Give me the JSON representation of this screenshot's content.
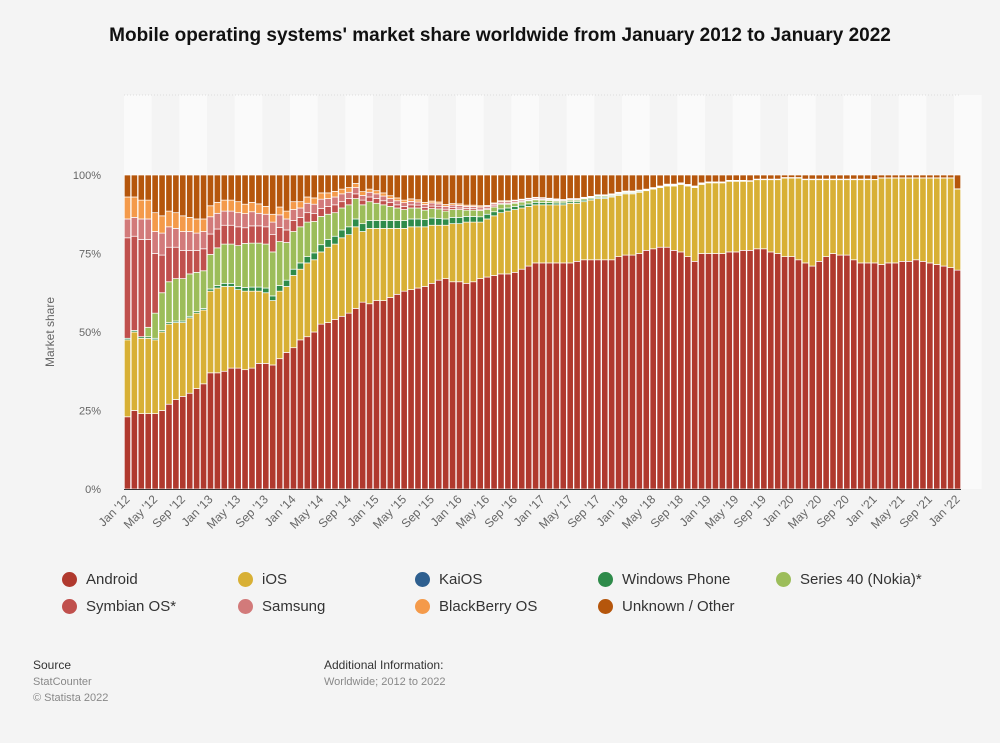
{
  "chart_data": {
    "type": "bar",
    "stacked": true,
    "title": "Mobile operating systems' market share worldwide from January 2012 to January 2022",
    "xlabel": "",
    "ylabel": "Market share",
    "ylim": [
      0,
      100
    ],
    "yticks": [
      "0%",
      "25%",
      "50%",
      "75%",
      "100%"
    ],
    "x_start": "2012-01",
    "x_end": "2022-01",
    "xtick_labels": [
      "Jan '12",
      "May '12",
      "Sep '12",
      "Jan '13",
      "May '13",
      "Sep '13",
      "Jan '14",
      "May '14",
      "Sep '14",
      "Jan '15",
      "May '15",
      "Sep '15",
      "Jan '16",
      "May '16",
      "Sep '16",
      "Jan '17",
      "May '17",
      "Sep '17",
      "Jan '18",
      "May '18",
      "Sep '18",
      "Jan '19",
      "May '19",
      "Sep '19",
      "Jan '20",
      "May '20",
      "Sep '20",
      "Jan '21",
      "May '21",
      "Sep '21",
      "Jan '22"
    ],
    "legend_position": "bottom",
    "series": [
      {
        "name": "Android",
        "color": "#b0392e",
        "values": [
          23,
          25,
          24,
          24,
          24,
          25,
          27,
          28.5,
          29.5,
          30.5,
          32,
          33.5,
          37,
          37,
          37.5,
          38.5,
          38.5,
          38,
          38.5,
          40,
          40,
          39.5,
          41.5,
          43.5,
          45,
          47.5,
          48.5,
          50,
          52.5,
          53,
          54,
          55,
          56,
          57.5,
          59.5,
          59,
          60,
          60,
          61,
          62,
          63,
          63.5,
          64,
          64.5,
          65.5,
          66.5,
          67,
          66,
          66,
          65.5,
          66,
          67,
          67.5,
          68,
          68.5,
          68.5,
          69,
          70,
          71,
          72,
          72,
          72,
          72,
          72,
          72,
          72.5,
          73,
          73,
          73,
          73,
          73,
          74,
          74.5,
          74.5,
          75,
          76,
          76.5,
          77,
          77,
          76,
          75.5,
          74,
          72.5,
          75,
          75,
          75,
          75,
          75.5,
          75.5,
          76,
          76,
          76.5,
          76.5,
          75.5,
          75,
          74,
          74,
          73,
          72,
          71,
          72.5,
          74,
          75,
          74.5,
          74.5,
          73,
          72,
          72,
          72,
          71.5,
          72,
          72,
          72.5,
          72.5,
          73,
          72.5,
          72,
          71.5,
          71,
          70.5,
          69.7
        ]
      },
      {
        "name": "iOS",
        "color": "#d8b035",
        "values": [
          24.5,
          25,
          24,
          24,
          23.5,
          25,
          25.5,
          24.5,
          23.5,
          24,
          24,
          23.5,
          26,
          27,
          27,
          26,
          25,
          25,
          24.5,
          23,
          22.5,
          20.5,
          21.5,
          21,
          23,
          22.5,
          23.5,
          23,
          23,
          24,
          24,
          25,
          25,
          26,
          22.5,
          24,
          23,
          23,
          22,
          21,
          20,
          20,
          19.5,
          19,
          18.5,
          17.5,
          17,
          18.5,
          18.5,
          19.5,
          19,
          18,
          18.5,
          19,
          19.5,
          20,
          20,
          19.5,
          19,
          18.5,
          18.5,
          18.5,
          18.5,
          18.5,
          19,
          18.5,
          18.5,
          19,
          19.5,
          19.5,
          20,
          19.5,
          19.5,
          19.5,
          19.5,
          19,
          19,
          19,
          19.5,
          20.5,
          21.5,
          22.5,
          23.5,
          22,
          22.5,
          22.5,
          22.5,
          22.5,
          22.5,
          22,
          22,
          22,
          22,
          23,
          23.5,
          25,
          25,
          26,
          26.5,
          27.5,
          26,
          24.5,
          23.5,
          24,
          24,
          25.5,
          26.5,
          26.5,
          26.5,
          27.5,
          27,
          27,
          26.5,
          26.5,
          26,
          26.5,
          27,
          27.5,
          28,
          28.5,
          25.8
        ]
      },
      {
        "name": "KaiOS",
        "color": "#2e5f8f",
        "values": [
          0,
          0,
          0,
          0,
          0,
          0,
          0,
          0,
          0,
          0,
          0,
          0,
          0,
          0,
          0,
          0,
          0,
          0,
          0,
          0,
          0,
          0,
          0,
          0,
          0,
          0,
          0,
          0,
          0,
          0,
          0,
          0,
          0,
          0,
          0,
          0,
          0,
          0,
          0,
          0,
          0,
          0,
          0,
          0,
          0,
          0,
          0,
          0,
          0,
          0,
          0,
          0,
          0,
          0,
          0,
          0,
          0,
          0,
          0,
          0,
          0,
          0,
          0,
          0,
          0,
          0,
          0,
          0,
          0,
          0,
          0,
          0,
          0,
          0,
          0,
          0,
          0,
          0,
          0.1,
          0.1,
          0.1,
          0.1,
          0.1,
          0.1,
          0.2,
          0.2,
          0.2,
          0.2,
          0.2,
          0.2,
          0.2,
          0.2,
          0.2,
          0.2,
          0.2,
          0.2,
          0.2,
          0.2,
          0.2,
          0.2,
          0.2,
          0.2,
          0.2,
          0.2,
          0.2,
          0.2,
          0.2,
          0.2,
          0.1,
          0.1,
          0.1,
          0.1,
          0.1,
          0.1,
          0.1,
          0.1,
          0.1,
          0.1,
          0.1,
          0.1,
          0.1
        ]
      },
      {
        "name": "Windows Phone",
        "color": "#2e8b4a",
        "values": [
          0.5,
          0.5,
          0.5,
          0.5,
          0.5,
          0.5,
          0.5,
          0.5,
          0.5,
          0.5,
          0.5,
          0.5,
          0.7,
          0.8,
          1,
          1,
          1,
          1.2,
          1.3,
          1.3,
          1.5,
          1.5,
          1.8,
          2,
          2,
          2,
          2,
          2.2,
          2.3,
          2.5,
          2.5,
          2.5,
          2.5,
          2.5,
          2.5,
          2.5,
          2.5,
          2.5,
          2.5,
          2.5,
          2.5,
          2.5,
          2.5,
          2.3,
          2.3,
          2.2,
          2,
          2,
          2,
          1.8,
          1.8,
          1.7,
          1.5,
          1.3,
          1.2,
          1,
          1,
          0.9,
          0.8,
          0.8,
          0.7,
          0.7,
          0.6,
          0.6,
          0.5,
          0.5,
          0.5,
          0.4,
          0.4,
          0.4,
          0.3,
          0.3,
          0.3,
          0.3,
          0.3,
          0.2,
          0.2,
          0.2,
          0.2,
          0.2,
          0.2,
          0.2,
          0.2,
          0.2,
          0.1,
          0.1,
          0.1,
          0.1,
          0.1,
          0.1,
          0,
          0,
          0,
          0,
          0,
          0,
          0,
          0,
          0,
          0,
          0,
          0,
          0,
          0,
          0,
          0,
          0,
          0,
          0,
          0,
          0,
          0,
          0,
          0,
          0,
          0,
          0,
          0,
          0,
          0,
          0
        ]
      },
      {
        "name": "Series 40 (Nokia)*",
        "color": "#9cbd5a",
        "values": [
          0,
          0,
          0,
          3,
          8,
          12,
          13,
          13.5,
          13.5,
          13.5,
          12.5,
          12,
          11,
          12,
          12.5,
          12.5,
          13,
          14,
          14,
          14,
          14,
          14,
          14,
          12,
          12,
          11.5,
          11,
          10,
          9,
          8,
          7.5,
          7,
          7,
          6.5,
          6,
          6,
          5.5,
          5,
          4.5,
          4,
          3.5,
          3.5,
          3.5,
          3,
          3,
          3,
          2.5,
          2.5,
          2.5,
          2,
          2,
          2,
          1.5,
          1.5,
          1.5,
          1.2,
          1,
          1,
          1,
          0.8,
          0.8,
          0.7,
          0.6,
          0.6,
          0.5,
          0.5,
          0.5,
          0.4,
          0.4,
          0.4,
          0.3,
          0.3,
          0.3,
          0.3,
          0.2,
          0.2,
          0.2,
          0.2,
          0.2,
          0.2,
          0.1,
          0.1,
          0.1,
          0.1,
          0,
          0,
          0,
          0,
          0,
          0,
          0,
          0,
          0,
          0,
          0,
          0,
          0,
          0,
          0,
          0,
          0,
          0,
          0,
          0,
          0,
          0,
          0,
          0,
          0,
          0,
          0,
          0,
          0,
          0,
          0,
          0,
          0,
          0,
          0,
          0,
          0
        ]
      },
      {
        "name": "Symbian OS*",
        "color": "#c0504d",
        "values": [
          32,
          30,
          31,
          28,
          19,
          12,
          11,
          10,
          9,
          7.5,
          7,
          7,
          6.5,
          6,
          6,
          6,
          6,
          5,
          5.5,
          5.5,
          5.5,
          5.5,
          4.5,
          4,
          3.5,
          3,
          3,
          2.5,
          2.5,
          2.5,
          2.5,
          2,
          2,
          1.5,
          1.5,
          1.5,
          1.5,
          1.3,
          1.2,
          1,
          1,
          1,
          0.9,
          0.8,
          0.8,
          0.7,
          0.6,
          0.6,
          0.5,
          0.5,
          0.5,
          0.4,
          0.4,
          0.4,
          0.3,
          0.3,
          0.3,
          0.3,
          0.2,
          0.2,
          0.2,
          0.2,
          0.2,
          0.1,
          0.1,
          0.1,
          0.1,
          0.1,
          0.1,
          0.1,
          0.1,
          0.1,
          0,
          0,
          0,
          0,
          0,
          0,
          0,
          0,
          0,
          0,
          0,
          0,
          0,
          0,
          0,
          0,
          0,
          0,
          0,
          0,
          0,
          0,
          0,
          0,
          0,
          0,
          0,
          0,
          0,
          0,
          0,
          0,
          0,
          0,
          0,
          0,
          0,
          0,
          0,
          0,
          0,
          0,
          0,
          0,
          0,
          0,
          0,
          0,
          0
        ]
      },
      {
        "name": "Samsung",
        "color": "#d27a7a",
        "values": [
          6,
          6,
          6.5,
          6.5,
          7,
          7,
          6.5,
          6,
          6,
          6,
          5.5,
          5.5,
          5.5,
          5,
          4.5,
          4.5,
          4.5,
          4.5,
          4.5,
          4,
          4,
          4,
          4,
          3.5,
          3.5,
          3,
          3,
          3,
          3,
          2.5,
          2.5,
          2.5,
          2,
          2,
          1.5,
          1.5,
          1.5,
          1.5,
          1.3,
          1.3,
          1.2,
          1.1,
          1,
          1,
          1,
          0.9,
          0.9,
          0.8,
          0.8,
          0.7,
          0.7,
          0.7,
          0.6,
          0.6,
          0.5,
          0.5,
          0.5,
          0.4,
          0.4,
          0.4,
          0.4,
          0.3,
          0.3,
          0.3,
          0.3,
          0.3,
          0.2,
          0.2,
          0.2,
          0.2,
          0.2,
          0.2,
          0.2,
          0.2,
          0.1,
          0.1,
          0.1,
          0.1,
          0.1,
          0.1,
          0.1,
          0.1,
          0.1,
          0.1,
          0,
          0,
          0,
          0,
          0,
          0,
          0,
          0,
          0,
          0,
          0,
          0,
          0,
          0,
          0,
          0,
          0,
          0,
          0,
          0,
          0,
          0,
          0,
          0,
          0,
          0,
          0,
          0,
          0,
          0,
          0,
          0,
          0,
          0,
          0,
          0,
          0
        ]
      },
      {
        "name": "BlackBerry OS",
        "color": "#f49a4a",
        "values": [
          7,
          6.5,
          6,
          6,
          6,
          5.5,
          5,
          5,
          5,
          4.5,
          4.5,
          4,
          3.5,
          3.5,
          3.5,
          3.5,
          3.5,
          3,
          3,
          3,
          2.5,
          2.5,
          2.5,
          2.5,
          2.5,
          2,
          2,
          2,
          2,
          1.8,
          1.8,
          1.5,
          1.5,
          1.3,
          1.2,
          1,
          1,
          1,
          0.9,
          0.9,
          0.8,
          0.8,
          0.7,
          0.7,
          0.6,
          0.6,
          0.6,
          0.5,
          0.5,
          0.4,
          0.4,
          0.4,
          0.3,
          0.3,
          0.3,
          0.3,
          0.2,
          0.2,
          0.2,
          0.2,
          0.2,
          0.2,
          0.2,
          0.1,
          0.1,
          0.1,
          0.1,
          0.1,
          0.1,
          0.1,
          0.1,
          0.1,
          0.1,
          0.1,
          0.1,
          0,
          0,
          0,
          0,
          0,
          0,
          0,
          0,
          0,
          0,
          0,
          0,
          0,
          0,
          0,
          0,
          0,
          0,
          0,
          0,
          0,
          0,
          0,
          0,
          0,
          0,
          0,
          0,
          0,
          0,
          0,
          0,
          0,
          0,
          0,
          0,
          0,
          0,
          0,
          0,
          0,
          0,
          0,
          0,
          0,
          0
        ]
      },
      {
        "name": "Unknown / Other",
        "color": "#b5560c",
        "values": "remainder"
      }
    ]
  },
  "legend": [
    {
      "label": "Android",
      "color": "#b0392e"
    },
    {
      "label": "iOS",
      "color": "#d8b035"
    },
    {
      "label": "KaiOS",
      "color": "#2e5f8f"
    },
    {
      "label": "Windows Phone",
      "color": "#2e8b4a"
    },
    {
      "label": "Series 40 (Nokia)*",
      "color": "#9cbd5a"
    },
    {
      "label": "Symbian OS*",
      "color": "#c0504d"
    },
    {
      "label": "Samsung",
      "color": "#d27a7a"
    },
    {
      "label": "BlackBerry OS",
      "color": "#f49a4a"
    },
    {
      "label": "Unknown / Other",
      "color": "#b5560c"
    }
  ],
  "source": {
    "heading": "Source",
    "name": "StatCounter",
    "copyright": "© Statista 2022"
  },
  "additional": {
    "heading": "Additional Information:",
    "text": "Worldwide; 2012 to 2022"
  }
}
